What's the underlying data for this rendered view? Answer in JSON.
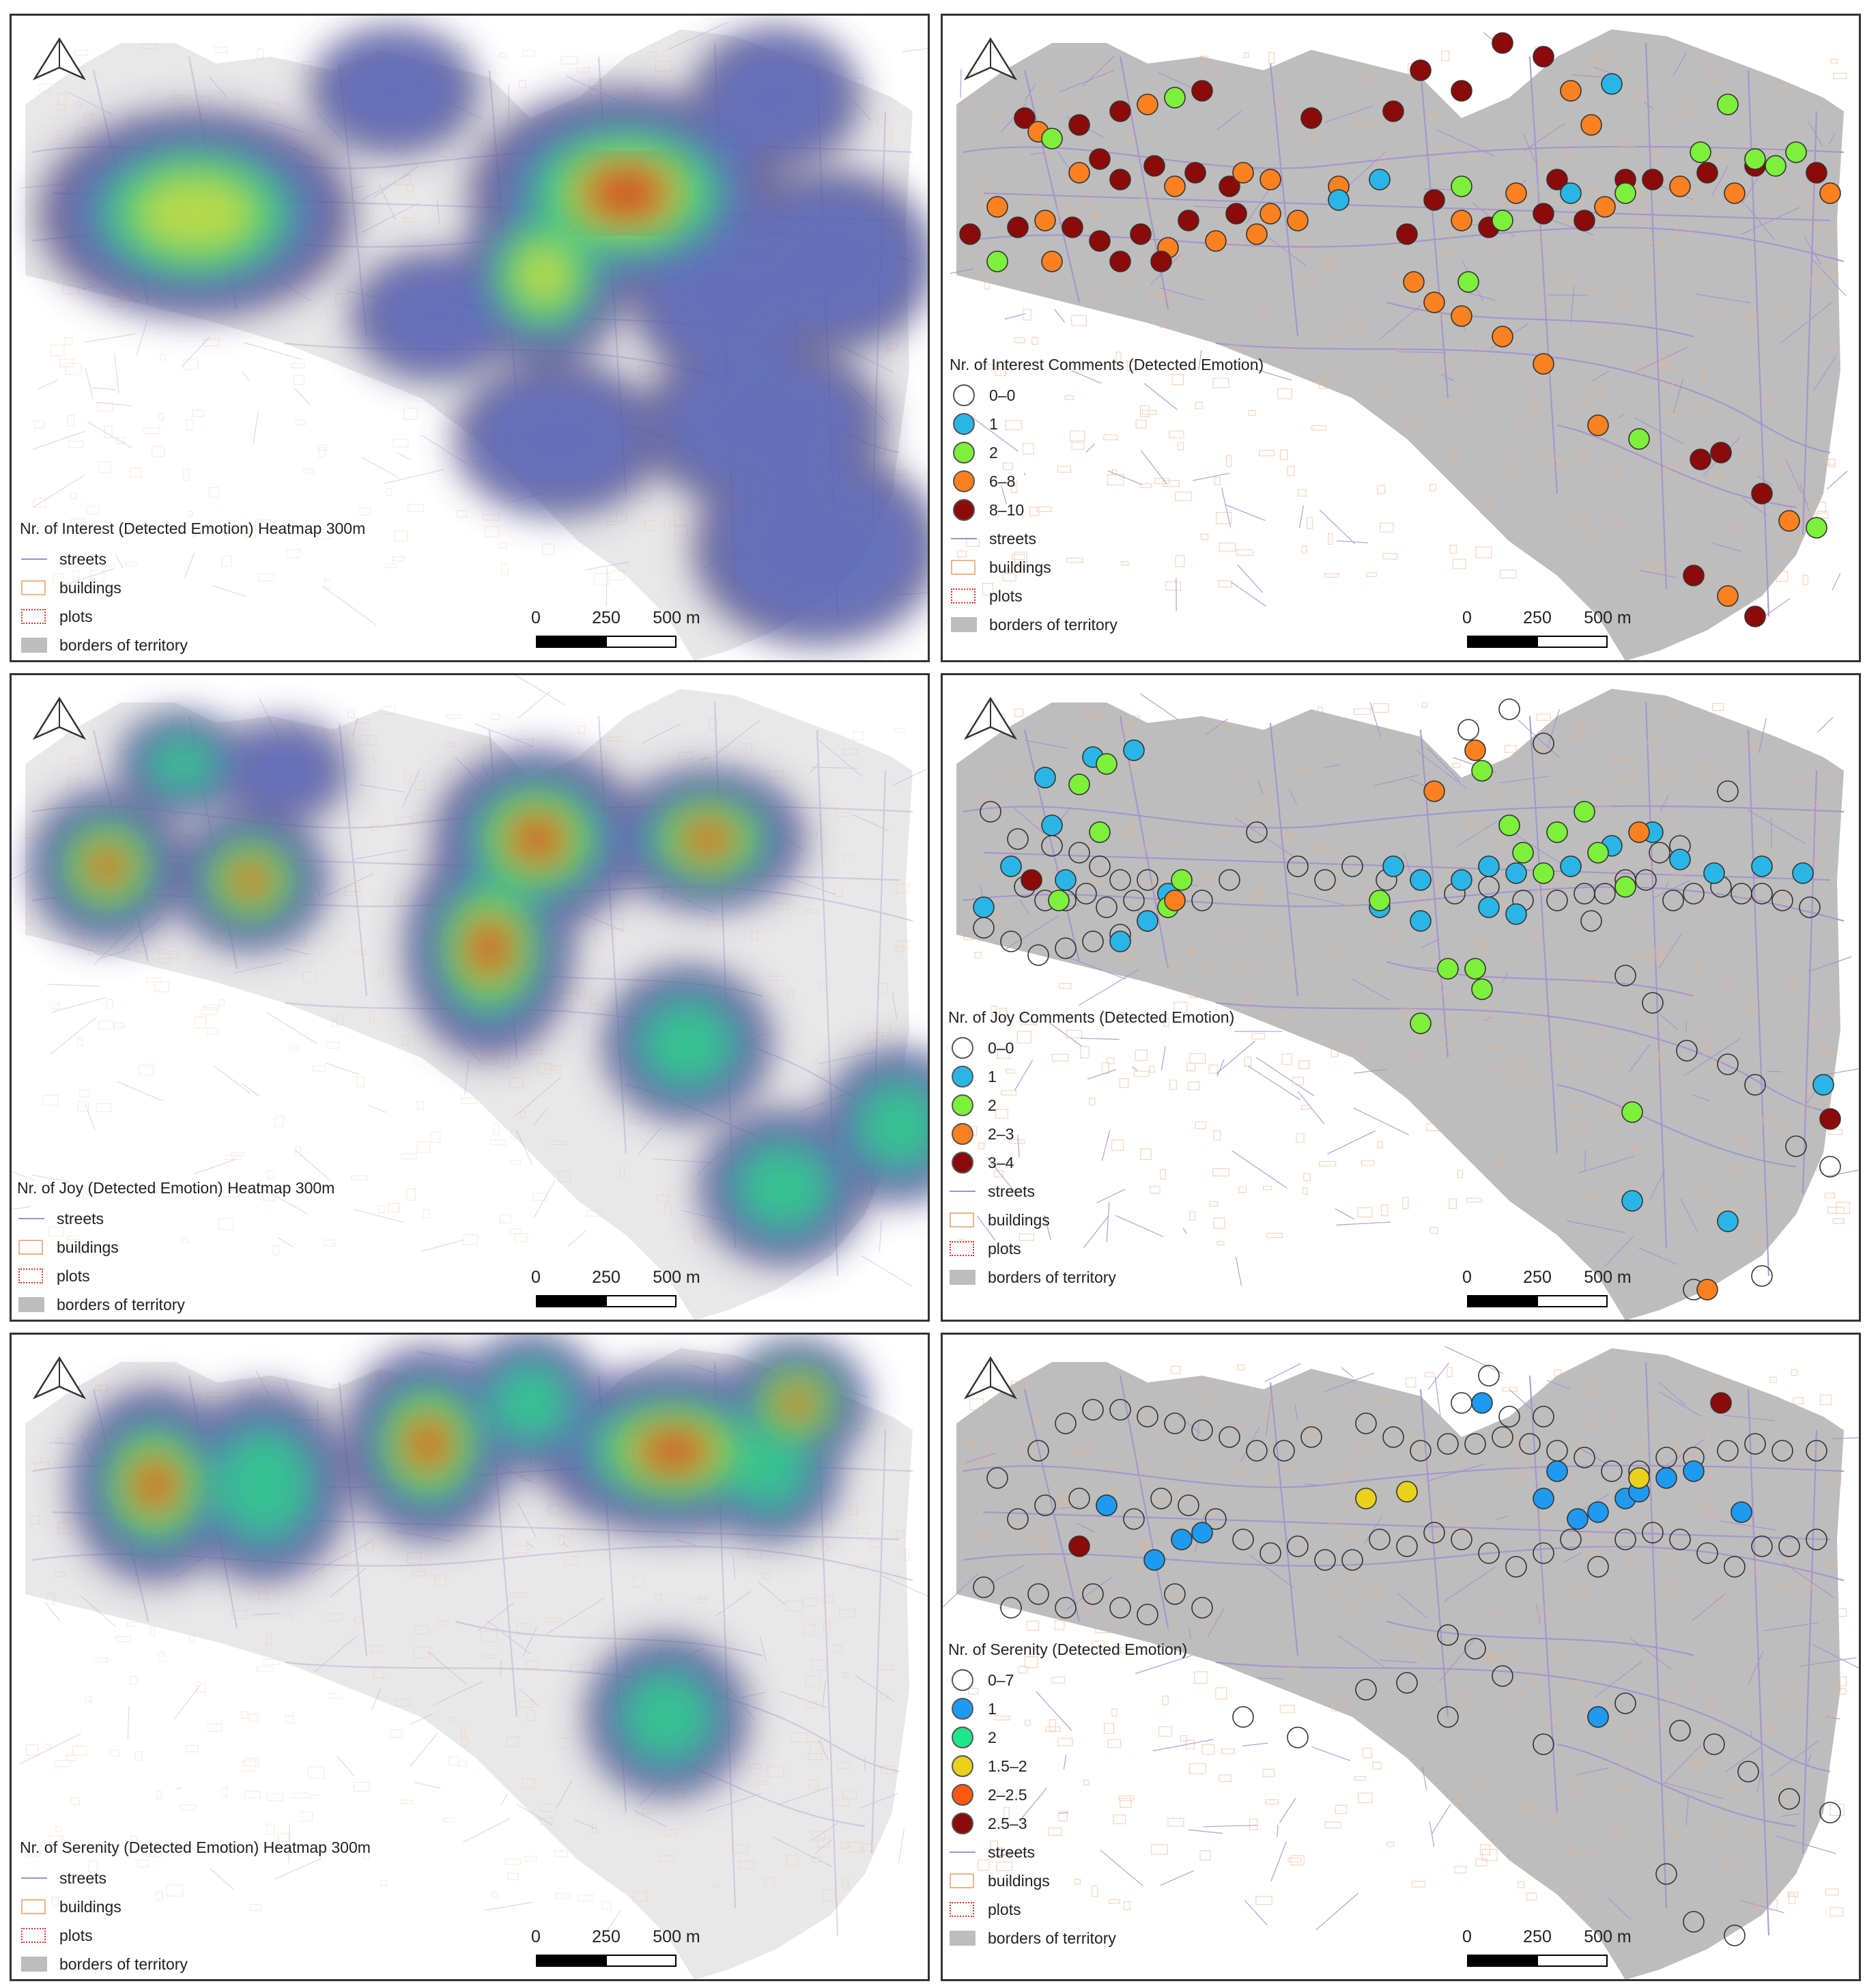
{
  "panels": [
    {
      "id": "interest-heatmap",
      "kind": "heatmap",
      "legend": {
        "title": "Nr. of  Interest (Detected Emotion) Heatmap 300m",
        "layers": [
          "streets",
          "buildings",
          "plots",
          "borders of territory"
        ]
      },
      "scale": {
        "labels": [
          "0",
          "250",
          "500 m"
        ]
      }
    },
    {
      "id": "interest-points",
      "kind": "points",
      "legend": {
        "title": "Nr. of  Interest Comments (Detected Emotion)",
        "classes": [
          {
            "label": "0–0",
            "color": "#ffffff"
          },
          {
            "label": "1",
            "color": "#29b6e6"
          },
          {
            "label": "2",
            "color": "#7cf03a"
          },
          {
            "label": "6–8",
            "color": "#fb8020"
          },
          {
            "label": "8–10",
            "color": "#8b0a0a"
          }
        ],
        "layers": [
          "streets",
          "buildings",
          "plots",
          "borders of territory"
        ]
      },
      "scale": {
        "labels": [
          "0",
          "250",
          "500 m"
        ]
      }
    },
    {
      "id": "joy-heatmap",
      "kind": "heatmap",
      "legend": {
        "title": "Nr. of  Joy (Detected Emotion) Heatmap 300m",
        "layers": [
          "streets",
          "buildings",
          "plots",
          "borders of territory"
        ]
      },
      "scale": {
        "labels": [
          "0",
          "250",
          "500 m"
        ]
      }
    },
    {
      "id": "joy-points",
      "kind": "points",
      "legend": {
        "title": "Nr. of  Joy Comments (Detected Emotion)",
        "classes": [
          {
            "label": "0–0",
            "color": "#ffffff"
          },
          {
            "label": "1",
            "color": "#29b6e6"
          },
          {
            "label": "2",
            "color": "#7cf03a"
          },
          {
            "label": "2–3",
            "color": "#fb8020"
          },
          {
            "label": "3–4",
            "color": "#8b0a0a"
          }
        ],
        "layers": [
          "streets",
          "buildings",
          "plots",
          "borders of territory"
        ]
      },
      "scale": {
        "labels": [
          "0",
          "250",
          "500 m"
        ]
      }
    },
    {
      "id": "serenity-heatmap",
      "kind": "heatmap",
      "legend": {
        "title": "Nr. of  Serenity (Detected Emotion) Heatmap 300m",
        "layers": [
          "streets",
          "buildings",
          "plots",
          "borders of territory"
        ]
      },
      "scale": {
        "labels": [
          "0",
          "250",
          "500 m"
        ]
      }
    },
    {
      "id": "serenity-points",
      "kind": "points",
      "legend": {
        "title": "Nr. of              Serenity (Detected Emotion)",
        "classes": [
          {
            "label": "0–7",
            "color": "#ffffff"
          },
          {
            "label": "1",
            "color": "#1e9af0"
          },
          {
            "label": "2",
            "color": "#1ee68a"
          },
          {
            "label": "1.5–2",
            "color": "#e8d21c"
          },
          {
            "label": "2–2.5",
            "color": "#fb5a10"
          },
          {
            "label": "2.5–3",
            "color": "#8b0a0a"
          }
        ],
        "layers": [
          "streets",
          "buildings",
          "plots",
          "borders of territory"
        ]
      },
      "scale": {
        "labels": [
          "0",
          "250",
          "500 m"
        ]
      }
    }
  ],
  "colors": {
    "territory": "#bdbdbd",
    "streets": "#a28fd0",
    "buildings": "#f0b48a",
    "heat_low": "#4b3a6e",
    "heat_mid": "#2fd08a",
    "heat_high": "#d83a1a"
  }
}
